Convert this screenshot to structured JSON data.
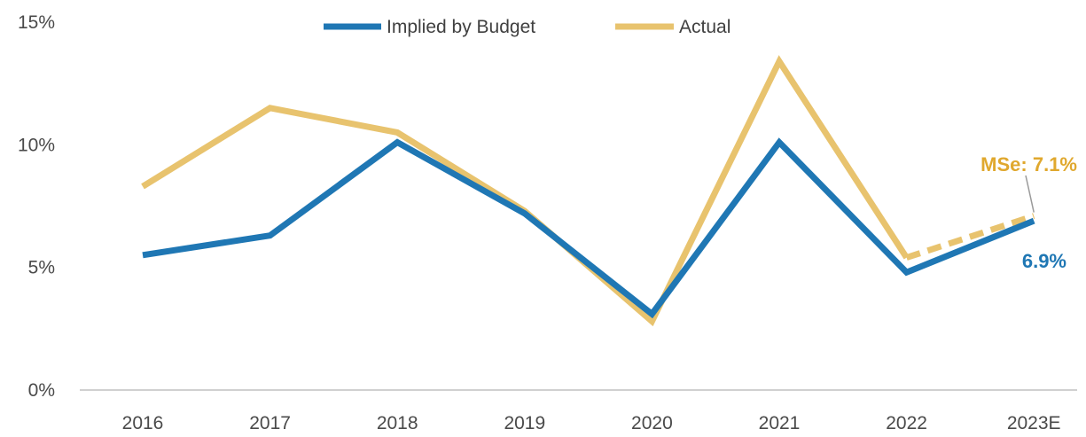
{
  "chart_data": {
    "type": "line",
    "categories": [
      "2016",
      "2017",
      "2018",
      "2019",
      "2020",
      "2021",
      "2022",
      "2023E"
    ],
    "ylim": [
      0,
      15
    ],
    "yticks": [
      0,
      5,
      10,
      15
    ],
    "ytick_labels": [
      "0%",
      "5%",
      "10%",
      "15%"
    ],
    "grid": false,
    "legend_position": "top-center",
    "series": [
      {
        "name": "Implied by Budget",
        "color": "#1f77b4",
        "values": [
          5.5,
          6.3,
          10.1,
          7.2,
          3.1,
          10.1,
          4.8,
          6.9
        ]
      },
      {
        "name": "Actual",
        "color": "#e8c36e",
        "values": [
          8.3,
          11.5,
          10.5,
          7.3,
          2.8,
          13.4,
          5.4,
          7.1
        ],
        "estimate_from_index": 6
      }
    ],
    "annotations": [
      {
        "text": "MSe: 7.1%",
        "series": "Actual",
        "category": "2023E",
        "color": "#e0a82e"
      },
      {
        "text": "6.9%",
        "series": "Implied by Budget",
        "category": "2023E",
        "color": "#1f77b4"
      }
    ]
  }
}
